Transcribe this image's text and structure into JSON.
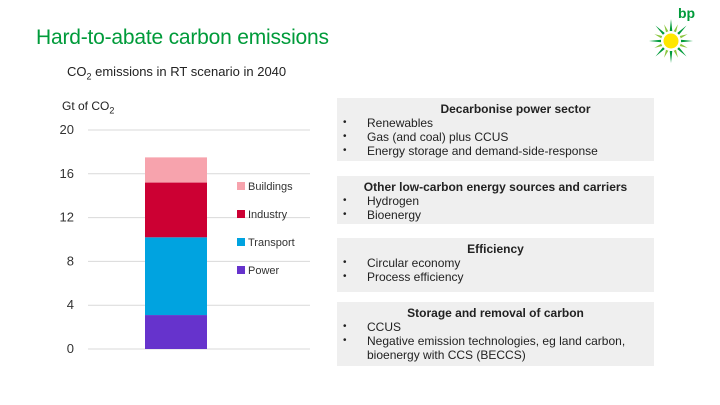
{
  "header": {
    "title": "Hard-to-abate carbon emissions",
    "logo_text": "bp",
    "subtitle_pre": "CO",
    "subtitle_sub": "2",
    "subtitle_post": " emissions in RT scenario in 2040"
  },
  "colors": {
    "brand_green": "#009b3a",
    "brand_yellow": "#ffe600",
    "buildings": "#f7a3ad",
    "industry": "#cc0033",
    "transport": "#00a3e0",
    "power": "#6633cc",
    "box_bg": "#efefef"
  },
  "chart_data": {
    "type": "bar",
    "stacked": true,
    "ylabel_pre": "Gt of CO",
    "ylabel_sub": "2",
    "ylim": [
      0,
      20
    ],
    "yticks": [
      "0",
      "4",
      "8",
      "12",
      "16",
      "20"
    ],
    "grid": true,
    "legend_position": "right",
    "categories": [
      ""
    ],
    "series": [
      {
        "name": "Power",
        "values": [
          3.1
        ],
        "color": "#6633cc"
      },
      {
        "name": "Transport",
        "values": [
          7.1
        ],
        "color": "#00a3e0"
      },
      {
        "name": "Industry",
        "values": [
          5.0
        ],
        "color": "#cc0033"
      },
      {
        "name": "Buildings",
        "values": [
          2.3
        ],
        "color": "#f7a3ad"
      }
    ]
  },
  "panels": [
    {
      "title": "Decarbonise power sector",
      "items": [
        "Renewables",
        "Gas (and coal) plus CCUS",
        "Energy storage and demand-side-response"
      ]
    },
    {
      "title": "Other low-carbon energy sources and carriers",
      "items": [
        "Hydrogen",
        "Bioenergy"
      ]
    },
    {
      "title": "Efficiency",
      "items": [
        "Circular economy",
        "Process efficiency"
      ]
    },
    {
      "title": "Storage and removal of carbon",
      "items": [
        "CCUS",
        "Negative emission technologies, eg land carbon, bioenergy with CCS (BECCS)"
      ]
    }
  ]
}
